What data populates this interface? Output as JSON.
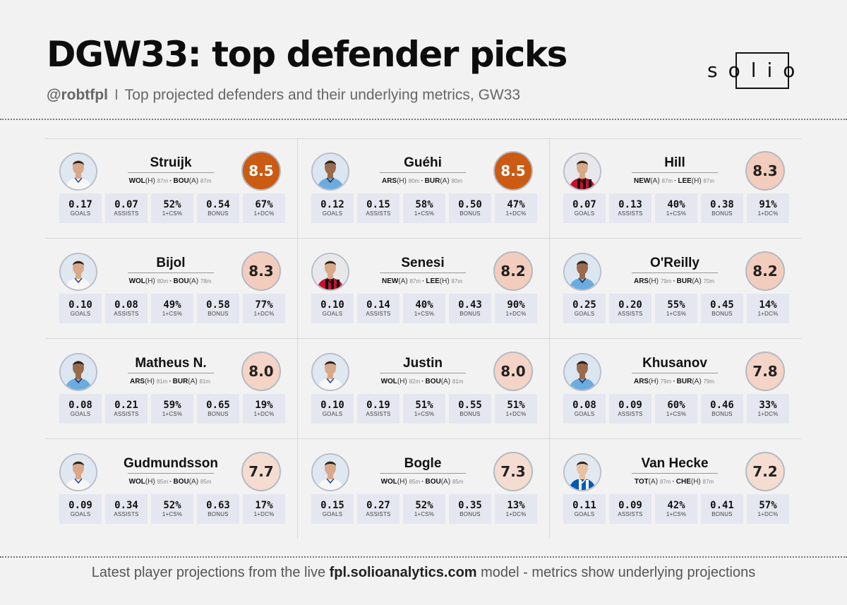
{
  "header": {
    "title": "DGW33: top defender picks",
    "handle": "@robtfpl",
    "separator": "I",
    "subtitle": "Top projected defenders and their underlying metrics, GW33",
    "logo_text": "solio"
  },
  "footer": {
    "prefix": "Latest player projections from the live ",
    "link": "fpl.solioanalytics.com",
    "suffix": " model - metrics show underlying projections"
  },
  "stat_labels": [
    "GOALS",
    "ASSISTS",
    "1+CS%",
    "BONUS",
    "1+DC%"
  ],
  "players": [
    {
      "name": "Struijk",
      "score": "8.5",
      "level": "hot",
      "kit": "leeds",
      "fixtures": [
        {
          "team": "WOL",
          "venue": "(H)",
          "mins": "87m"
        },
        {
          "team": "BOU",
          "venue": "(A)",
          "mins": "87m"
        }
      ],
      "stats": [
        "0.17",
        "0.07",
        "52%",
        "0.54",
        "67%"
      ]
    },
    {
      "name": "Guéhi",
      "score": "8.5",
      "level": "hot",
      "kit": "city",
      "fixtures": [
        {
          "team": "ARS",
          "venue": "(H)",
          "mins": "80m"
        },
        {
          "team": "BUR",
          "venue": "(A)",
          "mins": "80m"
        }
      ],
      "stats": [
        "0.12",
        "0.15",
        "58%",
        "0.50",
        "47%"
      ]
    },
    {
      "name": "Hill",
      "score": "8.3",
      "level": "warm",
      "kit": "bournemouth",
      "fixtures": [
        {
          "team": "NEW",
          "venue": "(A)",
          "mins": "87m"
        },
        {
          "team": "LEE",
          "venue": "(H)",
          "mins": "87m"
        }
      ],
      "stats": [
        "0.07",
        "0.13",
        "40%",
        "0.38",
        "91%"
      ]
    },
    {
      "name": "Bijol",
      "score": "8.3",
      "level": "warm",
      "kit": "leeds",
      "fixtures": [
        {
          "team": "WOL",
          "venue": "(H)",
          "mins": "80m"
        },
        {
          "team": "BOU",
          "venue": "(A)",
          "mins": "78m"
        }
      ],
      "stats": [
        "0.10",
        "0.08",
        "49%",
        "0.58",
        "77%"
      ]
    },
    {
      "name": "Senesi",
      "score": "8.2",
      "level": "warm",
      "kit": "bournemouth",
      "fixtures": [
        {
          "team": "NEW",
          "venue": "(A)",
          "mins": "87m"
        },
        {
          "team": "LEE",
          "venue": "(H)",
          "mins": "87m"
        }
      ],
      "stats": [
        "0.10",
        "0.14",
        "40%",
        "0.43",
        "90%"
      ]
    },
    {
      "name": "O'Reilly",
      "score": "8.2",
      "level": "warm",
      "kit": "city",
      "fixtures": [
        {
          "team": "ARS",
          "venue": "(H)",
          "mins": "79m"
        },
        {
          "team": "BUR",
          "venue": "(A)",
          "mins": "70m"
        }
      ],
      "stats": [
        "0.25",
        "0.20",
        "55%",
        "0.45",
        "14%"
      ]
    },
    {
      "name": "Matheus N.",
      "score": "8.0",
      "level": "mid",
      "kit": "city",
      "fixtures": [
        {
          "team": "ARS",
          "venue": "(H)",
          "mins": "81m"
        },
        {
          "team": "BUR",
          "venue": "(A)",
          "mins": "81m"
        }
      ],
      "stats": [
        "0.08",
        "0.21",
        "59%",
        "0.65",
        "19%"
      ]
    },
    {
      "name": "Justin",
      "score": "8.0",
      "level": "mid",
      "kit": "leeds",
      "fixtures": [
        {
          "team": "WOL",
          "venue": "(H)",
          "mins": "82m"
        },
        {
          "team": "BOU",
          "venue": "(A)",
          "mins": "81m"
        }
      ],
      "stats": [
        "0.10",
        "0.19",
        "51%",
        "0.55",
        "51%"
      ]
    },
    {
      "name": "Khusanov",
      "score": "7.8",
      "level": "mid",
      "kit": "city",
      "fixtures": [
        {
          "team": "ARS",
          "venue": "(H)",
          "mins": "79m"
        },
        {
          "team": "BUR",
          "venue": "(A)",
          "mins": "79m"
        }
      ],
      "stats": [
        "0.08",
        "0.09",
        "60%",
        "0.46",
        "33%"
      ]
    },
    {
      "name": "Gudmundsson",
      "score": "7.7",
      "level": "light",
      "kit": "leeds",
      "fixtures": [
        {
          "team": "WOL",
          "venue": "(H)",
          "mins": "85m"
        },
        {
          "team": "BOU",
          "venue": "(A)",
          "mins": "85m"
        }
      ],
      "stats": [
        "0.09",
        "0.34",
        "52%",
        "0.63",
        "17%"
      ]
    },
    {
      "name": "Bogle",
      "score": "7.3",
      "level": "light",
      "kit": "leeds",
      "fixtures": [
        {
          "team": "WOL",
          "venue": "(H)",
          "mins": "85m"
        },
        {
          "team": "BOU",
          "venue": "(A)",
          "mins": "85m"
        }
      ],
      "stats": [
        "0.15",
        "0.27",
        "52%",
        "0.35",
        "13%"
      ]
    },
    {
      "name": "Van Hecke",
      "score": "7.2",
      "level": "light",
      "kit": "brighton",
      "fixtures": [
        {
          "team": "TOT",
          "venue": "(A)",
          "mins": "87m"
        },
        {
          "team": "CHE",
          "venue": "(H)",
          "mins": "87m"
        }
      ],
      "stats": [
        "0.11",
        "0.09",
        "42%",
        "0.41",
        "57%"
      ]
    }
  ],
  "colors": {
    "score_hot": "#cb5a13",
    "score_warm": "#f2cdbd",
    "score_mid": "#f4d4c6",
    "score_light": "#f5dcd1",
    "stat_bg": "#e4e7ef",
    "background": "#f2f2f2"
  }
}
